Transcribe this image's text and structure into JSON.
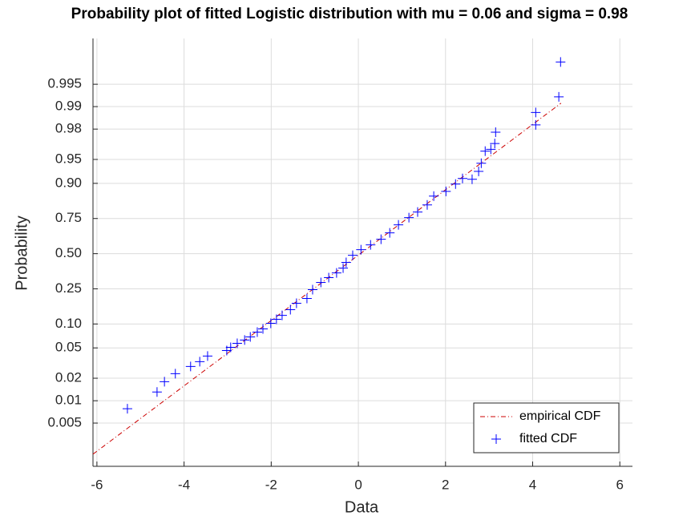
{
  "chart_data": {
    "type": "probability",
    "title": "Probability plot of fitted Logistic distribution with mu = 0.06 and sigma = 0.98",
    "x_label": "Data",
    "y_label": "Probability",
    "xlim": [
      -6.09,
      6.29
    ],
    "xticks": [
      -6,
      -4,
      -2,
      0,
      2,
      4,
      6
    ],
    "ylim": [
      0.0013,
      0.9988
    ],
    "yscale": "logit",
    "yticks": [
      0.005,
      0.01,
      0.02,
      0.05,
      {
        "value": 0.1,
        "label": "0.10"
      },
      0.25,
      {
        "value": 0.5,
        "label": "0.50"
      },
      0.75,
      {
        "value": 0.9,
        "label": "0.90"
      },
      0.95,
      0.98,
      0.99,
      0.995
    ],
    "grid": true,
    "legend": "lower right",
    "series": [
      {
        "name": "empirical CDF",
        "type": "line",
        "color": "#cc0000",
        "x": [
          -6.09,
          4.65
        ],
        "values": [
          0.0019,
          0.991
        ]
      },
      {
        "name": "fitted CDF",
        "type": "scatter",
        "color": "#0000ff",
        "x": [
          -5.3,
          -4.62,
          -4.45,
          -4.2,
          -3.85,
          -3.64,
          -3.46,
          -3.02,
          -2.93,
          -2.78,
          -2.61,
          -2.48,
          -2.32,
          -2.19,
          -2.01,
          -1.88,
          -1.75,
          -1.56,
          -1.42,
          -1.18,
          -1.05,
          -0.86,
          -0.68,
          -0.5,
          -0.35,
          -0.28,
          -0.13,
          0.06,
          0.28,
          0.52,
          0.72,
          0.92,
          1.16,
          1.36,
          1.58,
          1.73,
          2.01,
          2.23,
          2.39,
          2.61,
          2.76,
          2.82,
          2.91,
          3.04,
          3.13,
          3.15,
          4.07,
          4.07,
          4.6,
          4.64
        ],
        "values": [
          0.0078,
          0.0131,
          0.018,
          0.023,
          0.0286,
          0.0331,
          0.0392,
          0.0463,
          0.0509,
          0.0573,
          0.063,
          0.069,
          0.0794,
          0.0871,
          0.102,
          0.114,
          0.127,
          0.148,
          0.175,
          0.198,
          0.245,
          0.289,
          0.321,
          0.354,
          0.389,
          0.432,
          0.4875,
          0.531,
          0.568,
          0.611,
          0.657,
          0.711,
          0.755,
          0.786,
          0.821,
          0.858,
          0.875,
          0.898,
          0.913,
          0.911,
          0.929,
          0.944,
          0.961,
          0.963,
          0.969,
          0.978,
          0.9824,
          0.988,
          0.9926,
          0.9975
        ]
      }
    ]
  }
}
